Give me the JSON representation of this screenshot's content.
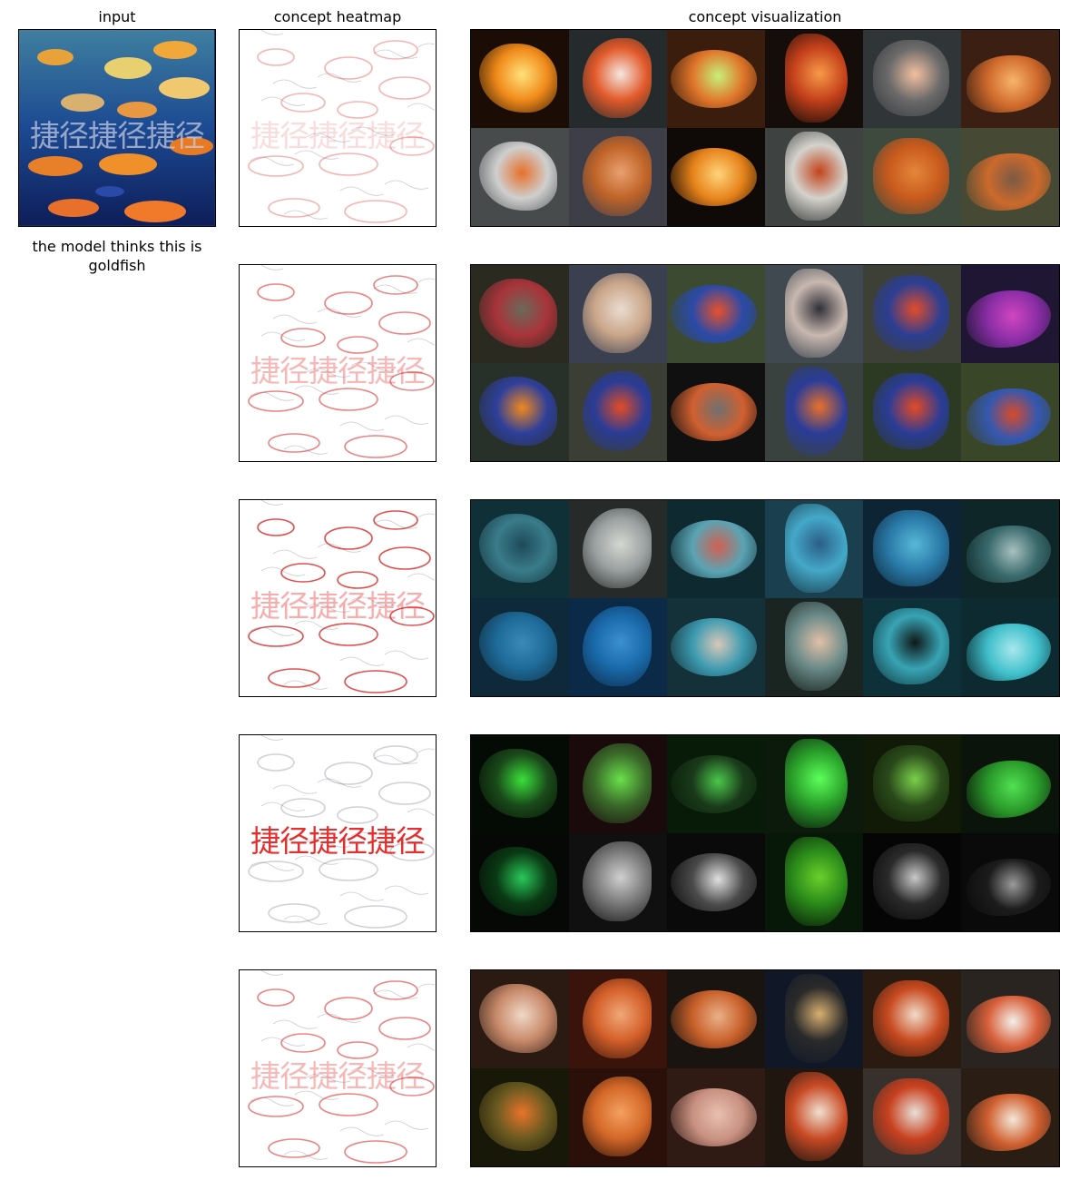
{
  "headers": {
    "input": "input",
    "heatmap": "concept heatmap",
    "visualization": "concept visualization"
  },
  "prediction_caption": "the model thinks this is goldfish",
  "input_watermark": "捷径捷径捷径",
  "concepts": [
    {
      "heat_style": "faint",
      "tiles": [
        {
          "bg": "#1b0d05",
          "fg": "#f08a1a",
          "hl": "#ffe27a"
        },
        {
          "bg": "#252a2c",
          "fg": "#e25a2a",
          "hl": "#f5e7e0"
        },
        {
          "bg": "#3a1d0c",
          "fg": "#e0752a",
          "hl": "#c7f07a"
        },
        {
          "bg": "#150d0a",
          "fg": "#c4401a",
          "hl": "#f79a4a"
        },
        {
          "bg": "#303538",
          "fg": "#6b6a6a",
          "hl": "#f2c0a0"
        },
        {
          "bg": "#3a1f12",
          "fg": "#d06a2c",
          "hl": "#f7b46a"
        },
        {
          "bg": "#474b4c",
          "fg": "#cfcfcf",
          "hl": "#e6702a"
        },
        {
          "bg": "#3d3e48",
          "fg": "#c06428",
          "hl": "#e8a070"
        },
        {
          "bg": "#0f0907",
          "fg": "#e6821a",
          "hl": "#ffd47a"
        },
        {
          "bg": "#3e4240",
          "fg": "#d4d2cc",
          "hl": "#c2431a"
        },
        {
          "bg": "#3e4a3e",
          "fg": "#c85a1c",
          "hl": "#e4863a"
        },
        {
          "bg": "#464a34",
          "fg": "#cb6a2c",
          "hl": "#7a5a44"
        }
      ]
    },
    {
      "heat_style": "medium",
      "tiles": [
        {
          "bg": "#2a2a20",
          "fg": "#a8343a",
          "hl": "#6a6a5a"
        },
        {
          "bg": "#3a4050",
          "fg": "#caa68a",
          "hl": "#eadcd0"
        },
        {
          "bg": "#3c4a32",
          "fg": "#2a4aa8",
          "hl": "#e8502a"
        },
        {
          "bg": "#404850",
          "fg": "#c8b8b0",
          "hl": "#303038"
        },
        {
          "bg": "#3c4036",
          "fg": "#2c3e92",
          "hl": "#e34c2a"
        },
        {
          "bg": "#1e1632",
          "fg": "#8a2ea6",
          "hl": "#d046c0"
        },
        {
          "bg": "#28302a",
          "fg": "#2e3f9a",
          "hl": "#f0881e"
        },
        {
          "bg": "#3a3e34",
          "fg": "#2a3c96",
          "hl": "#e24c24"
        },
        {
          "bg": "#101010",
          "fg": "#d06030",
          "hl": "#707070"
        },
        {
          "bg": "#3a4240",
          "fg": "#2a3c98",
          "hl": "#e8702a"
        },
        {
          "bg": "#2c3a24",
          "fg": "#2a3c96",
          "hl": "#e44a24"
        },
        {
          "bg": "#3a4628",
          "fg": "#3458b0",
          "hl": "#d84a2a"
        }
      ]
    },
    {
      "heat_style": "strong",
      "tiles": [
        {
          "bg": "#103038",
          "fg": "#3a7c8a",
          "hl": "#1e4a5a"
        },
        {
          "bg": "#262a28",
          "fg": "#9aa0a0",
          "hl": "#d4d8d2"
        },
        {
          "bg": "#0e2a30",
          "fg": "#5aa4b4",
          "hl": "#d06050"
        },
        {
          "bg": "#1a4050",
          "fg": "#44a8c8",
          "hl": "#2a5e88"
        },
        {
          "bg": "#0c2434",
          "fg": "#2a7aa8",
          "hl": "#58b8d8"
        },
        {
          "bg": "#0e2628",
          "fg": "#3a6a6c",
          "hl": "#a8c0c0"
        },
        {
          "bg": "#0e2a3a",
          "fg": "#1e6a98",
          "hl": "#3a8ab8"
        },
        {
          "bg": "#0a2a48",
          "fg": "#1a6aaa",
          "hl": "#3a90d0"
        },
        {
          "bg": "#143038",
          "fg": "#3c9ab0",
          "hl": "#d8c8b8"
        },
        {
          "bg": "#1a2420",
          "fg": "#6a8a88",
          "hl": "#e0c0a8"
        },
        {
          "bg": "#0e3038",
          "fg": "#38a4b4",
          "hl": "#101818"
        },
        {
          "bg": "#0c2a30",
          "fg": "#40c0cc",
          "hl": "#a8e8ec"
        }
      ]
    },
    {
      "heat_style": "text",
      "tiles": [
        {
          "bg": "#040a04",
          "fg": "#1a4a1a",
          "hl": "#3ae03a"
        },
        {
          "bg": "#1a0a0c",
          "fg": "#3a6a2a",
          "hl": "#6ae04a"
        },
        {
          "bg": "#081a08",
          "fg": "#1a3a1a",
          "hl": "#4ac84a"
        },
        {
          "bg": "#0c1a0c",
          "fg": "#2aa02a",
          "hl": "#5cff5c"
        },
        {
          "bg": "#101a06",
          "fg": "#2a4a1a",
          "hl": "#7ad04a"
        },
        {
          "bg": "#0a140a",
          "fg": "#2a9a2a",
          "hl": "#52e052"
        },
        {
          "bg": "#050805",
          "fg": "#0a3a14",
          "hl": "#2ac85a"
        },
        {
          "bg": "#101010",
          "fg": "#7a7a7a",
          "hl": "#d0d0d0"
        },
        {
          "bg": "#0a0a0a",
          "fg": "#4a4a4a",
          "hl": "#e0e0e0"
        },
        {
          "bg": "#081808",
          "fg": "#2a8a1a",
          "hl": "#6ad02a"
        },
        {
          "bg": "#050505",
          "fg": "#2a2a2a",
          "hl": "#c8c8c8"
        },
        {
          "bg": "#0a0a0a",
          "fg": "#1c1c1c",
          "hl": "#9a9a9a"
        }
      ]
    },
    {
      "heat_style": "medium",
      "tiles": [
        {
          "bg": "#2a1a12",
          "fg": "#c88a6a",
          "hl": "#f0d8c8"
        },
        {
          "bg": "#3a140a",
          "fg": "#d4602a",
          "hl": "#f0a878"
        },
        {
          "bg": "#1a1410",
          "fg": "#c8602a",
          "hl": "#eab088"
        },
        {
          "bg": "#101828",
          "fg": "#2a2a2a",
          "hl": "#d8b070"
        },
        {
          "bg": "#2a1a10",
          "fg": "#c84a20",
          "hl": "#f0dcc8"
        },
        {
          "bg": "#2a2420",
          "fg": "#d8603a",
          "hl": "#f4f0ea"
        },
        {
          "bg": "#181808",
          "fg": "#6a5a20",
          "hl": "#e8742a"
        },
        {
          "bg": "#2a1008",
          "fg": "#d46828",
          "hl": "#f4a060"
        },
        {
          "bg": "#301a14",
          "fg": "#c89080",
          "hl": "#e8c0b0"
        },
        {
          "bg": "#201610",
          "fg": "#c84a24",
          "hl": "#f0e0d0"
        },
        {
          "bg": "#38302c",
          "fg": "#c8401e",
          "hl": "#e8e0d8"
        },
        {
          "bg": "#2a1e14",
          "fg": "#d06030",
          "hl": "#f4e8d8"
        }
      ]
    }
  ]
}
